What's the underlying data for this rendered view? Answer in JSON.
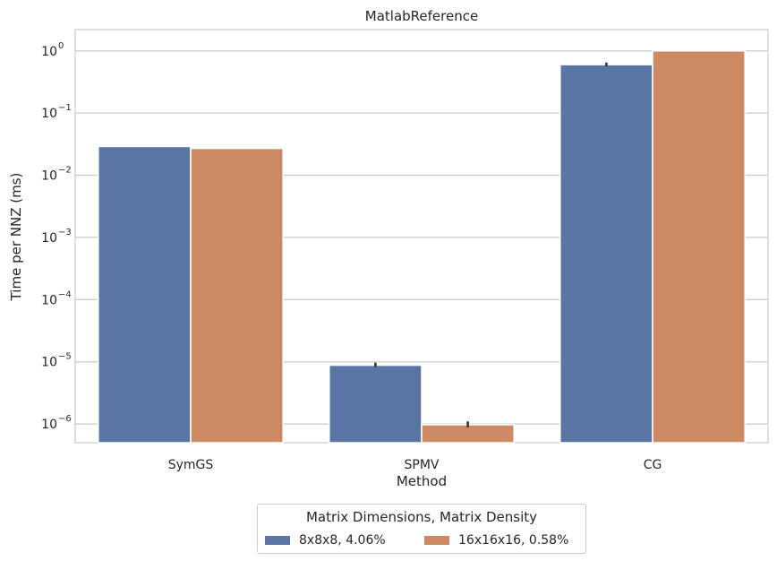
{
  "chart_data": {
    "type": "bar",
    "title": "MatlabReference",
    "xlabel": "Method",
    "ylabel": "Time per NNZ (ms)",
    "yscale": "log",
    "ylim": [
      5e-07,
      2.2
    ],
    "yticks": [
      {
        "value": 1e-06,
        "base": "10",
        "exp": "−6"
      },
      {
        "value": 1e-05,
        "base": "10",
        "exp": "−5"
      },
      {
        "value": 0.0001,
        "base": "10",
        "exp": "−4"
      },
      {
        "value": 0.001,
        "base": "10",
        "exp": "−3"
      },
      {
        "value": 0.01,
        "base": "10",
        "exp": "−2"
      },
      {
        "value": 0.1,
        "base": "10",
        "exp": "−1"
      },
      {
        "value": 1,
        "base": "10",
        "exp": "0"
      }
    ],
    "categories": [
      "SymGS",
      "SPMV",
      "CG"
    ],
    "grid": true,
    "legend_position": "bottom-center, below plot",
    "legend_title": "Matrix Dimensions, Matrix Density",
    "series": [
      {
        "name": "8x8x8, 4.06%",
        "color": "#5975a4",
        "values": [
          0.029,
          8.8e-06,
          0.6
        ],
        "error_high": [
          null,
          9.7e-06,
          0.65
        ],
        "error_low": [
          null,
          8.2e-06,
          0.56
        ]
      },
      {
        "name": "16x16x16, 0.58%",
        "color": "#cc8963",
        "values": [
          0.027,
          9.7e-07,
          1.0
        ],
        "error_high": [
          null,
          1.1e-06,
          null
        ],
        "error_low": [
          null,
          8.8e-07,
          null
        ]
      }
    ]
  }
}
